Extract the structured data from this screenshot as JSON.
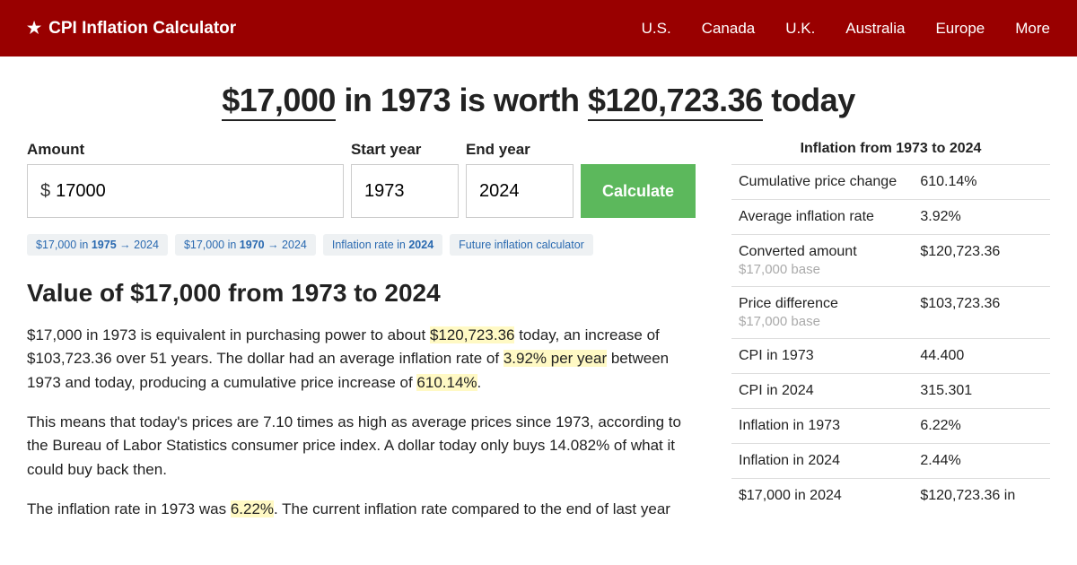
{
  "colors": {
    "navbar_bg": "#990000",
    "navbar_text": "#ffffff",
    "button_bg": "#5cb85c",
    "chip_bg": "#eef1f3",
    "chip_text": "#2969b0",
    "highlight_bg": "#fff9c4",
    "border": "#dddddd",
    "subtext": "#aaaaaa"
  },
  "nav": {
    "brand": "CPI Inflation Calculator",
    "links": [
      "U.S.",
      "Canada",
      "U.K.",
      "Australia",
      "Europe",
      "More"
    ]
  },
  "headline": {
    "amount_from": "$17,000",
    "mid": " in 1973 is worth ",
    "amount_to": "$120,723.36",
    "suffix": " today"
  },
  "form": {
    "amount_label": "Amount",
    "currency_prefix": "$",
    "amount_value": "17000",
    "start_label": "Start year",
    "start_value": "1973",
    "end_label": "End year",
    "end_value": "2024",
    "button": "Calculate"
  },
  "chips": [
    {
      "pre": "$17,000 in ",
      "bold": "1975",
      "post": " → 2024"
    },
    {
      "pre": "$17,000 in ",
      "bold": "1970",
      "post": " → 2024"
    },
    {
      "pre": "Inflation rate in ",
      "bold": "2024",
      "post": ""
    },
    {
      "pre": "Future inflation calculator",
      "bold": "",
      "post": ""
    }
  ],
  "section_title": "Value of $17,000 from 1973 to 2024",
  "para1": {
    "t1": "$17,000 in 1973 is equivalent in purchasing power to about ",
    "h1": "$120,723.36",
    "t2": " today, an increase of $103,723.36 over 51 years. The dollar had an average inflation rate of ",
    "h2": "3.92% per year",
    "t3": " between 1973 and today, producing a cumulative price increase of ",
    "h3": "610.14%",
    "t4": "."
  },
  "para2": "This means that today's prices are 7.10 times as high as average prices since 1973, according to the Bureau of Labor Statistics consumer price index. A dollar today only buys 14.082% of what it could buy back then.",
  "para3": {
    "t1": "The inflation rate in 1973 was ",
    "h1": "6.22%",
    "t2": ". The current inflation rate compared to the end of last year"
  },
  "sidebar": {
    "title": "Inflation from 1973 to 2024",
    "rows": [
      {
        "label": "Cumulative price change",
        "sub": "",
        "value": "610.14%"
      },
      {
        "label": "Average inflation rate",
        "sub": "",
        "value": "3.92%"
      },
      {
        "label": "Converted amount",
        "sub": "$17,000 base",
        "value": "$120,723.36"
      },
      {
        "label": "Price difference",
        "sub": "$17,000 base",
        "value": "$103,723.36"
      },
      {
        "label": "CPI in 1973",
        "sub": "",
        "value": "44.400"
      },
      {
        "label": "CPI in 2024",
        "sub": "",
        "value": "315.301"
      },
      {
        "label": "Inflation in 1973",
        "sub": "",
        "value": "6.22%"
      },
      {
        "label": "Inflation in 2024",
        "sub": "",
        "value": "2.44%"
      },
      {
        "label": "$17,000 in 2024",
        "sub": "",
        "value": "$120,723.36 in"
      }
    ]
  }
}
